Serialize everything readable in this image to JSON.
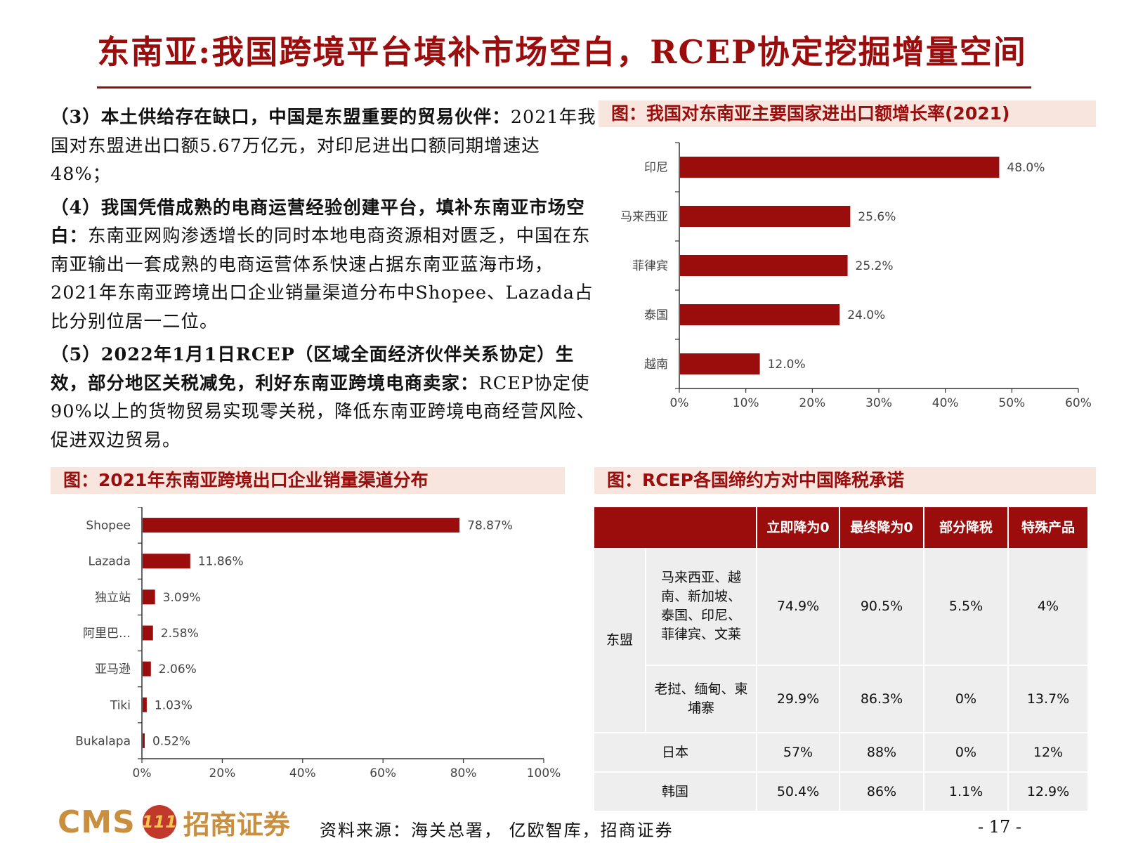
{
  "page": {
    "title": "东南亚:我国跨境平台填补市场空白，RCEP协定挖掘增量空间",
    "source": "资料来源：海关总署， 亿欧智库，招商证券",
    "page_number": "- 17 -",
    "logo": {
      "cms": "CMS",
      "circle": "111",
      "cn": "招商证券"
    }
  },
  "text_blocks": [
    {
      "bold": "（3）本土供给存在缺口，中国是东盟重要的贸易伙伴：",
      "normal": "2021年我国对东盟进出口额5.67万亿元，对印尼进出口额同期增速达48%；"
    },
    {
      "bold": "（4）我国凭借成熟的电商运营经验创建平台，填补东南亚市场空白：",
      "normal": "东南亚网购渗透增长的同时本地电商资源相对匮乏，中国在东南亚输出一套成熟的电商运营体系快速占据东南亚蓝海市场，2021年东南亚跨境出口企业销量渠道分布中Shopee、Lazada占比分别位居一二位。"
    },
    {
      "bold": "（5）2022年1月1日RCEP（区域全面经济伙伴关系协定）生效，部分地区关税减免，利好东南亚跨境电商卖家：",
      "normal": "RCEP协定使90%以上的货物贸易实现零关税，降低东南亚跨境电商经营风险、促进双边贸易。"
    }
  ],
  "captions": {
    "chart1": "图：我国对东南亚主要国家进出口额增长率(2021)",
    "chart2": "图：2021年东南亚跨境出口企业销量渠道分布",
    "table": "图：RCEP各国缔约方对中国降税承诺"
  },
  "colors": {
    "accent": "#9b0d0d",
    "caption_bg": "#f8e6de",
    "table_cell": "#eeeeee"
  },
  "chart_data": [
    {
      "type": "bar",
      "orientation": "horizontal",
      "title": "图：我国对东南亚主要国家进出口额增长率(2021)",
      "categories": [
        "印尼",
        "马来西亚",
        "菲律宾",
        "泰国",
        "越南"
      ],
      "values": [
        48.0,
        25.6,
        25.2,
        24.0,
        12.0
      ],
      "value_labels": [
        "48.0%",
        "25.6%",
        "25.2%",
        "24.0%",
        "12.0%"
      ],
      "xlim": [
        0,
        60
      ],
      "ticks": [
        0,
        10,
        20,
        30,
        40,
        50,
        60
      ],
      "tick_labels": [
        "0%",
        "10%",
        "20%",
        "30%",
        "40%",
        "50%",
        "60%"
      ],
      "grid": false,
      "color": "#9b0d0d"
    },
    {
      "type": "bar",
      "orientation": "horizontal",
      "title": "图：2021年东南亚跨境出口企业销量渠道分布",
      "categories": [
        "Shopee",
        "Lazada",
        "独立站",
        "阿里巴…",
        "亚马逊",
        "Tiki",
        "Bukalapa"
      ],
      "values": [
        78.87,
        11.86,
        3.09,
        2.58,
        2.06,
        1.03,
        0.52
      ],
      "value_labels": [
        "78.87%",
        "11.86%",
        "3.09%",
        "2.58%",
        "2.06%",
        "1.03%",
        "0.52%"
      ],
      "xlim": [
        0,
        100
      ],
      "ticks": [
        0,
        20,
        40,
        60,
        80,
        100
      ],
      "tick_labels": [
        "0%",
        "20%",
        "40%",
        "60%",
        "80%",
        "100%"
      ],
      "grid": false,
      "color": "#9b0d0d"
    }
  ],
  "table": {
    "headers": [
      "",
      "立即降为0",
      "最终降为0",
      "部分降税",
      "特殊产品"
    ],
    "group": "东盟",
    "rows": [
      {
        "name": "马来西亚、越南、新加坡、泰国、印尼、菲律宾、文莱",
        "values": [
          "74.9%",
          "90.5%",
          "5.5%",
          "4%"
        ]
      },
      {
        "name": "老挝、缅甸、柬埔寨",
        "values": [
          "29.9%",
          "86.3%",
          "0%",
          "13.7%"
        ]
      },
      {
        "name": "日本",
        "values": [
          "57%",
          "88%",
          "0%",
          "12%"
        ]
      },
      {
        "name": "韩国",
        "values": [
          "50.4%",
          "86%",
          "1.1%",
          "12.9%"
        ]
      }
    ]
  }
}
